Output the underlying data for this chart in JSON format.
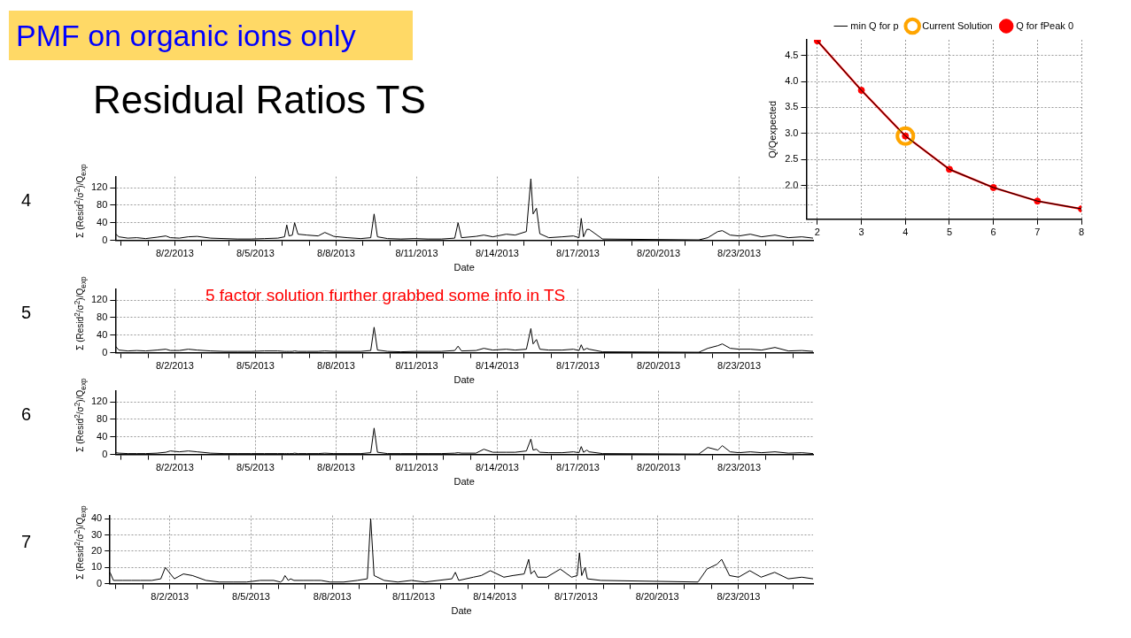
{
  "chart_data": [
    {
      "type": "other",
      "title": "PMF on organic ions only",
      "subtitle": "Residual Ratios TS"
    },
    {
      "type": "line",
      "ylabel": "Q/Qexpected",
      "x": [
        2,
        3,
        4,
        5,
        6,
        7,
        8
      ],
      "xlim": [
        1.75,
        8
      ],
      "xticks": [
        2,
        3,
        4,
        5,
        6,
        7,
        8
      ],
      "ylim": [
        1.35,
        4.8
      ],
      "yticks": [
        {
          "value": 2,
          "label": "2.0"
        },
        2.5,
        {
          "value": 3,
          "label": "3.0"
        },
        3.5,
        {
          "value": 4,
          "label": "4.0"
        },
        4.5
      ],
      "grid": true,
      "legend": "top right",
      "series": [
        {
          "name": "Q for fPeak 0",
          "color": "#ff0000",
          "marker": "circle",
          "values": [
            4.78,
            3.83,
            2.95,
            2.31,
            1.96,
            1.7,
            1.55
          ]
        },
        {
          "name": "Current Solution",
          "type": "scatter",
          "color": "#ffa500",
          "marker": "circle",
          "x": [
            4
          ],
          "values": [
            2.95
          ]
        },
        {
          "name": "min Q for p",
          "color": "#000000",
          "marker": "none",
          "values": [
            4.78,
            3.83,
            2.95,
            2.31,
            1.96,
            1.7,
            1.55
          ]
        }
      ]
    },
    {
      "type": "line",
      "title": "4",
      "xlabel": "Date",
      "ylabel": "Σ (Resid$^{2}$/σ$^{2}$)/Q$_{exp}$",
      "color": "#000000",
      "grid": true,
      "xlim": [
        "2013-07-30T19:00",
        "2013-08-25T18:00"
      ],
      "ylim": [
        0,
        145
      ],
      "yticks": [
        0,
        40,
        80,
        120
      ],
      "xticks": [
        {
          "value": "2013-07-31",
          "label": null
        },
        {
          "value": "2013-08-01",
          "label": null
        },
        {
          "value": "2013-08-02",
          "label": "8/2/2013"
        },
        {
          "value": "2013-08-03",
          "label": null
        },
        {
          "value": "2013-08-04",
          "label": null
        },
        {
          "value": "2013-08-05",
          "label": "8/5/2013"
        },
        {
          "value": "2013-08-06",
          "label": null
        },
        {
          "value": "2013-08-07",
          "label": null
        },
        {
          "value": "2013-08-08",
          "label": "8/8/2013"
        },
        {
          "value": "2013-08-09",
          "label": null
        },
        {
          "value": "2013-08-10",
          "label": null
        },
        {
          "value": "2013-08-11",
          "label": "8/11/2013"
        },
        {
          "value": "2013-08-12",
          "label": null
        },
        {
          "value": "2013-08-13",
          "label": null
        },
        {
          "value": "2013-08-14",
          "label": "8/14/2013"
        },
        {
          "value": "2013-08-15",
          "label": null
        },
        {
          "value": "2013-08-16",
          "label": null
        },
        {
          "value": "2013-08-17",
          "label": "8/17/2013"
        },
        {
          "value": "2013-08-18",
          "label": null
        },
        {
          "value": "2013-08-19",
          "label": null
        },
        {
          "value": "2013-08-20",
          "label": "8/20/2013"
        },
        {
          "value": "2013-08-21",
          "label": null
        },
        {
          "value": "2013-08-22",
          "label": null
        },
        {
          "value": "2013-08-23",
          "label": "8/23/2013"
        },
        {
          "value": "2013-08-24",
          "label": null
        },
        {
          "value": "2013-08-25",
          "label": null
        }
      ],
      "x": [
        "2013-07-30T19:00",
        "2013-07-30T22:00",
        "2013-07-31T06:00",
        "2013-07-31T14:00",
        "2013-07-31T22:00",
        "2013-08-01T08:00",
        "2013-08-01T16:00",
        "2013-08-01T20:00",
        "2013-08-02T04:00",
        "2013-08-02T12:00",
        "2013-08-02T20:00",
        "2013-08-03T08:00",
        "2013-08-03T20:00",
        "2013-08-04T08:00",
        "2013-08-04T20:00",
        "2013-08-05T08:00",
        "2013-08-05T20:00",
        "2013-08-06T02:00",
        "2013-08-06T04:00",
        "2013-08-06T06:00",
        "2013-08-06T09:00",
        "2013-08-06T11:00",
        "2013-08-06T14:00",
        "2013-08-06T22:00",
        "2013-08-07T08:00",
        "2013-08-07T14:00",
        "2013-08-07T22:00",
        "2013-08-08T10:00",
        "2013-08-08T22:00",
        "2013-08-09T07:00",
        "2013-08-09T10:00",
        "2013-08-09T13:00",
        "2013-08-09T22:00",
        "2013-08-10T10:00",
        "2013-08-10T22:00",
        "2013-08-11T10:00",
        "2013-08-11T22:00",
        "2013-08-12T10:00",
        "2013-08-12T13:00",
        "2013-08-12T16:00",
        "2013-08-13T05:00",
        "2013-08-13T12:00",
        "2013-08-13T20:00",
        "2013-08-14T08:00",
        "2013-08-14T16:00",
        "2013-08-15T02:00",
        "2013-08-15T06:00",
        "2013-08-15T08:00",
        "2013-08-15T11:00",
        "2013-08-15T14:00",
        "2013-08-15T22:00",
        "2013-08-16T10:00",
        "2013-08-16T20:00",
        "2013-08-17T01:00",
        "2013-08-17T03:00",
        "2013-08-17T05:00",
        "2013-08-17T08:00",
        "2013-08-17T10:00",
        "2013-08-17T22:00",
        "2013-08-21T12:00",
        "2013-08-21T20:00",
        "2013-08-22T05:00",
        "2013-08-22T09:00",
        "2013-08-22T16:00",
        "2013-08-23T00:00",
        "2013-08-23T10:00",
        "2013-08-23T20:00",
        "2013-08-24T08:00",
        "2013-08-24T20:00",
        "2013-08-25T08:00",
        "2013-08-25T18:00"
      ],
      "values": [
        15,
        8,
        5,
        6,
        4,
        7,
        10,
        6,
        5,
        8,
        9,
        5,
        4,
        3,
        3,
        4,
        5,
        8,
        35,
        10,
        12,
        40,
        14,
        12,
        10,
        18,
        9,
        6,
        4,
        6,
        60,
        8,
        4,
        3,
        4,
        3,
        3,
        5,
        40,
        6,
        9,
        12,
        8,
        14,
        12,
        20,
        140,
        60,
        73,
        15,
        6,
        8,
        10,
        6,
        50,
        8,
        25,
        25,
        3,
        1,
        6,
        20,
        22,
        12,
        10,
        14,
        8,
        12,
        6,
        8,
        5
      ]
    },
    {
      "type": "line",
      "title": "5",
      "xlabel": "Date",
      "ylabel": "Σ (Resid$^{2}$/σ$^{2}$)/Q$_{exp}$",
      "color": "#000000",
      "grid": true,
      "annotations": [
        "5 factor solution further grabbed some info in TS"
      ],
      "xlim": [
        "2013-07-30T19:00",
        "2013-08-25T18:00"
      ],
      "ylim": [
        0,
        145
      ],
      "yticks": [
        0,
        40,
        80,
        120
      ],
      "xticks": [
        {
          "value": "2013-07-31",
          "label": null
        },
        {
          "value": "2013-08-01",
          "label": null
        },
        {
          "value": "2013-08-02",
          "label": "8/2/2013"
        },
        {
          "value": "2013-08-03",
          "label": null
        },
        {
          "value": "2013-08-04",
          "label": null
        },
        {
          "value": "2013-08-05",
          "label": "8/5/2013"
        },
        {
          "value": "2013-08-06",
          "label": null
        },
        {
          "value": "2013-08-07",
          "label": null
        },
        {
          "value": "2013-08-08",
          "label": "8/8/2013"
        },
        {
          "value": "2013-08-09",
          "label": null
        },
        {
          "value": "2013-08-10",
          "label": null
        },
        {
          "value": "2013-08-11",
          "label": "8/11/2013"
        },
        {
          "value": "2013-08-12",
          "label": null
        },
        {
          "value": "2013-08-13",
          "label": null
        },
        {
          "value": "2013-08-14",
          "label": "8/14/2013"
        },
        {
          "value": "2013-08-15",
          "label": null
        },
        {
          "value": "2013-08-16",
          "label": null
        },
        {
          "value": "2013-08-17",
          "label": "8/17/2013"
        },
        {
          "value": "2013-08-18",
          "label": null
        },
        {
          "value": "2013-08-19",
          "label": null
        },
        {
          "value": "2013-08-20",
          "label": "8/20/2013"
        },
        {
          "value": "2013-08-21",
          "label": null
        },
        {
          "value": "2013-08-22",
          "label": null
        },
        {
          "value": "2013-08-23",
          "label": "8/23/2013"
        },
        {
          "value": "2013-08-24",
          "label": null
        },
        {
          "value": "2013-08-25",
          "label": null
        }
      ],
      "x": [
        "2013-07-30T19:00",
        "2013-07-30T22:00",
        "2013-07-31T06:00",
        "2013-07-31T14:00",
        "2013-07-31T22:00",
        "2013-08-01T08:00",
        "2013-08-01T16:00",
        "2013-08-01T20:00",
        "2013-08-02T04:00",
        "2013-08-02T12:00",
        "2013-08-02T20:00",
        "2013-08-03T08:00",
        "2013-08-03T20:00",
        "2013-08-04T08:00",
        "2013-08-04T20:00",
        "2013-08-05T08:00",
        "2013-08-05T20:00",
        "2013-08-06T02:00",
        "2013-08-06T04:00",
        "2013-08-06T06:00",
        "2013-08-06T09:00",
        "2013-08-06T11:00",
        "2013-08-06T14:00",
        "2013-08-06T22:00",
        "2013-08-07T08:00",
        "2013-08-07T14:00",
        "2013-08-07T22:00",
        "2013-08-08T10:00",
        "2013-08-08T22:00",
        "2013-08-09T07:00",
        "2013-08-09T10:00",
        "2013-08-09T13:00",
        "2013-08-09T22:00",
        "2013-08-10T10:00",
        "2013-08-10T22:00",
        "2013-08-11T10:00",
        "2013-08-11T22:00",
        "2013-08-12T10:00",
        "2013-08-12T13:00",
        "2013-08-12T16:00",
        "2013-08-13T05:00",
        "2013-08-13T12:00",
        "2013-08-13T20:00",
        "2013-08-14T08:00",
        "2013-08-14T16:00",
        "2013-08-15T02:00",
        "2013-08-15T06:00",
        "2013-08-15T08:00",
        "2013-08-15T11:00",
        "2013-08-15T14:00",
        "2013-08-15T22:00",
        "2013-08-16T10:00",
        "2013-08-16T20:00",
        "2013-08-17T01:00",
        "2013-08-17T03:00",
        "2013-08-17T05:00",
        "2013-08-17T08:00",
        "2013-08-17T10:00",
        "2013-08-17T22:00",
        "2013-08-21T12:00",
        "2013-08-21T20:00",
        "2013-08-22T05:00",
        "2013-08-22T09:00",
        "2013-08-22T16:00",
        "2013-08-23T00:00",
        "2013-08-23T10:00",
        "2013-08-23T20:00",
        "2013-08-24T08:00",
        "2013-08-24T20:00",
        "2013-08-25T08:00",
        "2013-08-25T18:00"
      ],
      "values": [
        15,
        6,
        4,
        5,
        4,
        6,
        8,
        5,
        5,
        8,
        6,
        4,
        3,
        3,
        3,
        4,
        4,
        3,
        3,
        3,
        3,
        4,
        3,
        3,
        3,
        4,
        3,
        3,
        3,
        5,
        58,
        6,
        3,
        2,
        3,
        3,
        3,
        5,
        15,
        4,
        5,
        10,
        6,
        8,
        6,
        8,
        55,
        20,
        30,
        8,
        6,
        6,
        8,
        5,
        18,
        6,
        10,
        8,
        2,
        1,
        10,
        16,
        20,
        10,
        8,
        8,
        6,
        12,
        4,
        5,
        3
      ]
    },
    {
      "type": "line",
      "title": "6",
      "xlabel": "Date",
      "ylabel": "Σ (Resid$^{2}$/σ$^{2}$)/Q$_{exp}$",
      "color": "#000000",
      "grid": true,
      "xlim": [
        "2013-07-30T19:00",
        "2013-08-25T18:00"
      ],
      "ylim": [
        0,
        145
      ],
      "yticks": [
        0,
        40,
        80,
        120
      ],
      "xticks": [
        {
          "value": "2013-07-31",
          "label": null
        },
        {
          "value": "2013-08-01",
          "label": null
        },
        {
          "value": "2013-08-02",
          "label": "8/2/2013"
        },
        {
          "value": "2013-08-03",
          "label": null
        },
        {
          "value": "2013-08-04",
          "label": null
        },
        {
          "value": "2013-08-05",
          "label": "8/5/2013"
        },
        {
          "value": "2013-08-06",
          "label": null
        },
        {
          "value": "2013-08-07",
          "label": null
        },
        {
          "value": "2013-08-08",
          "label": "8/8/2013"
        },
        {
          "value": "2013-08-09",
          "label": null
        },
        {
          "value": "2013-08-10",
          "label": null
        },
        {
          "value": "2013-08-11",
          "label": "8/11/2013"
        },
        {
          "value": "2013-08-12",
          "label": null
        },
        {
          "value": "2013-08-13",
          "label": null
        },
        {
          "value": "2013-08-14",
          "label": "8/14/2013"
        },
        {
          "value": "2013-08-15",
          "label": null
        },
        {
          "value": "2013-08-16",
          "label": null
        },
        {
          "value": "2013-08-17",
          "label": "8/17/2013"
        },
        {
          "value": "2013-08-18",
          "label": null
        },
        {
          "value": "2013-08-19",
          "label": null
        },
        {
          "value": "2013-08-20",
          "label": "8/20/2013"
        },
        {
          "value": "2013-08-21",
          "label": null
        },
        {
          "value": "2013-08-22",
          "label": null
        },
        {
          "value": "2013-08-23",
          "label": "8/23/2013"
        },
        {
          "value": "2013-08-24",
          "label": null
        },
        {
          "value": "2013-08-25",
          "label": null
        }
      ],
      "x": [
        "2013-07-30T19:00",
        "2013-07-30T22:00",
        "2013-07-31T06:00",
        "2013-07-31T14:00",
        "2013-07-31T22:00",
        "2013-08-01T08:00",
        "2013-08-01T16:00",
        "2013-08-01T20:00",
        "2013-08-02T04:00",
        "2013-08-02T12:00",
        "2013-08-02T20:00",
        "2013-08-03T08:00",
        "2013-08-03T20:00",
        "2013-08-04T08:00",
        "2013-08-04T20:00",
        "2013-08-05T08:00",
        "2013-08-05T20:00",
        "2013-08-06T02:00",
        "2013-08-06T04:00",
        "2013-08-06T06:00",
        "2013-08-06T09:00",
        "2013-08-06T11:00",
        "2013-08-06T14:00",
        "2013-08-06T22:00",
        "2013-08-07T08:00",
        "2013-08-07T14:00",
        "2013-08-07T22:00",
        "2013-08-08T10:00",
        "2013-08-08T22:00",
        "2013-08-09T07:00",
        "2013-08-09T10:00",
        "2013-08-09T13:00",
        "2013-08-09T22:00",
        "2013-08-10T10:00",
        "2013-08-10T22:00",
        "2013-08-11T10:00",
        "2013-08-11T22:00",
        "2013-08-12T10:00",
        "2013-08-12T13:00",
        "2013-08-12T16:00",
        "2013-08-13T05:00",
        "2013-08-13T12:00",
        "2013-08-13T20:00",
        "2013-08-14T08:00",
        "2013-08-14T16:00",
        "2013-08-15T02:00",
        "2013-08-15T06:00",
        "2013-08-15T08:00",
        "2013-08-15T11:00",
        "2013-08-15T14:00",
        "2013-08-15T22:00",
        "2013-08-16T10:00",
        "2013-08-16T20:00",
        "2013-08-17T01:00",
        "2013-08-17T03:00",
        "2013-08-17T05:00",
        "2013-08-17T08:00",
        "2013-08-17T10:00",
        "2013-08-17T22:00",
        "2013-08-21T12:00",
        "2013-08-21T20:00",
        "2013-08-22T05:00",
        "2013-08-22T09:00",
        "2013-08-22T16:00",
        "2013-08-23T00:00",
        "2013-08-23T10:00",
        "2013-08-23T20:00",
        "2013-08-24T08:00",
        "2013-08-24T20:00",
        "2013-08-25T08:00",
        "2013-08-25T18:00"
      ],
      "values": [
        4,
        3,
        2,
        2,
        2,
        3,
        5,
        8,
        6,
        8,
        6,
        3,
        2,
        2,
        2,
        2,
        2,
        2,
        2,
        2,
        2,
        3,
        2,
        2,
        2,
        3,
        2,
        2,
        2,
        4,
        60,
        5,
        2,
        2,
        2,
        2,
        2,
        3,
        4,
        3,
        3,
        12,
        5,
        5,
        5,
        8,
        35,
        10,
        12,
        5,
        4,
        4,
        6,
        4,
        18,
        5,
        10,
        6,
        2,
        1,
        16,
        10,
        20,
        6,
        4,
        6,
        4,
        6,
        3,
        4,
        2
      ]
    },
    {
      "type": "line",
      "title": "7",
      "xlabel": "Date",
      "ylabel": "Σ (Resid$^{2}$/σ$^{2}$)/Q$_{exp}$",
      "color": "#000000",
      "grid": true,
      "xlim": [
        "2013-07-30T19:00",
        "2013-08-25T18:00"
      ],
      "ylim": [
        0,
        42
      ],
      "yticks": [
        0,
        10,
        20,
        30,
        40
      ],
      "xticks": [
        {
          "value": "2013-07-31",
          "label": null
        },
        {
          "value": "2013-08-01",
          "label": null
        },
        {
          "value": "2013-08-02",
          "label": "8/2/2013"
        },
        {
          "value": "2013-08-03",
          "label": null
        },
        {
          "value": "2013-08-04",
          "label": null
        },
        {
          "value": "2013-08-05",
          "label": "8/5/2013"
        },
        {
          "value": "2013-08-06",
          "label": null
        },
        {
          "value": "2013-08-07",
          "label": null
        },
        {
          "value": "2013-08-08",
          "label": "8/8/2013"
        },
        {
          "value": "2013-08-09",
          "label": null
        },
        {
          "value": "2013-08-10",
          "label": null
        },
        {
          "value": "2013-08-11",
          "label": "8/11/2013"
        },
        {
          "value": "2013-08-12",
          "label": null
        },
        {
          "value": "2013-08-13",
          "label": null
        },
        {
          "value": "2013-08-14",
          "label": "8/14/2013"
        },
        {
          "value": "2013-08-15",
          "label": null
        },
        {
          "value": "2013-08-16",
          "label": null
        },
        {
          "value": "2013-08-17",
          "label": "8/17/2013"
        },
        {
          "value": "2013-08-18",
          "label": null
        },
        {
          "value": "2013-08-19",
          "label": null
        },
        {
          "value": "2013-08-20",
          "label": "8/20/2013"
        },
        {
          "value": "2013-08-21",
          "label": null
        },
        {
          "value": "2013-08-22",
          "label": null
        },
        {
          "value": "2013-08-23",
          "label": "8/23/2013"
        },
        {
          "value": "2013-08-24",
          "label": null
        },
        {
          "value": "2013-08-25",
          "label": null
        }
      ],
      "x": [
        "2013-07-30T19:00",
        "2013-07-30T22:00",
        "2013-07-31T06:00",
        "2013-07-31T14:00",
        "2013-07-31T22:00",
        "2013-08-01T08:00",
        "2013-08-01T16:00",
        "2013-08-01T20:00",
        "2013-08-02T04:00",
        "2013-08-02T12:00",
        "2013-08-02T20:00",
        "2013-08-03T08:00",
        "2013-08-03T20:00",
        "2013-08-04T08:00",
        "2013-08-04T20:00",
        "2013-08-05T08:00",
        "2013-08-05T20:00",
        "2013-08-06T02:00",
        "2013-08-06T04:00",
        "2013-08-06T06:00",
        "2013-08-06T09:00",
        "2013-08-06T11:00",
        "2013-08-06T14:00",
        "2013-08-06T22:00",
        "2013-08-07T08:00",
        "2013-08-07T14:00",
        "2013-08-07T22:00",
        "2013-08-08T10:00",
        "2013-08-08T22:00",
        "2013-08-09T07:00",
        "2013-08-09T10:00",
        "2013-08-09T13:00",
        "2013-08-09T22:00",
        "2013-08-10T10:00",
        "2013-08-10T22:00",
        "2013-08-11T10:00",
        "2013-08-11T22:00",
        "2013-08-12T10:00",
        "2013-08-12T13:00",
        "2013-08-12T16:00",
        "2013-08-13T05:00",
        "2013-08-13T12:00",
        "2013-08-13T20:00",
        "2013-08-14T08:00",
        "2013-08-14T16:00",
        "2013-08-15T02:00",
        "2013-08-15T06:00",
        "2013-08-15T08:00",
        "2013-08-15T11:00",
        "2013-08-15T14:00",
        "2013-08-15T22:00",
        "2013-08-16T10:00",
        "2013-08-16T20:00",
        "2013-08-17T01:00",
        "2013-08-17T03:00",
        "2013-08-17T05:00",
        "2013-08-17T08:00",
        "2013-08-17T10:00",
        "2013-08-17T22:00",
        "2013-08-21T12:00",
        "2013-08-21T20:00",
        "2013-08-22T05:00",
        "2013-08-22T09:00",
        "2013-08-22T16:00",
        "2013-08-23T00:00",
        "2013-08-23T10:00",
        "2013-08-23T20:00",
        "2013-08-24T08:00",
        "2013-08-24T20:00",
        "2013-08-25T08:00",
        "2013-08-25T18:00"
      ],
      "values": [
        7,
        2,
        2,
        2,
        2,
        2,
        3,
        10,
        3,
        6,
        5,
        2,
        1,
        1,
        1,
        2,
        2,
        1,
        2,
        5,
        2,
        3,
        2,
        2,
        2,
        2,
        1,
        1,
        2,
        3,
        40,
        5,
        2,
        1,
        2,
        1,
        2,
        3,
        7,
        2,
        4,
        5,
        8,
        4,
        5,
        6,
        15,
        6,
        8,
        4,
        4,
        9,
        4,
        5,
        19,
        5,
        10,
        3,
        2,
        1,
        9,
        12,
        15,
        5,
        4,
        8,
        4,
        7,
        3,
        4,
        3
      ]
    }
  ]
}
